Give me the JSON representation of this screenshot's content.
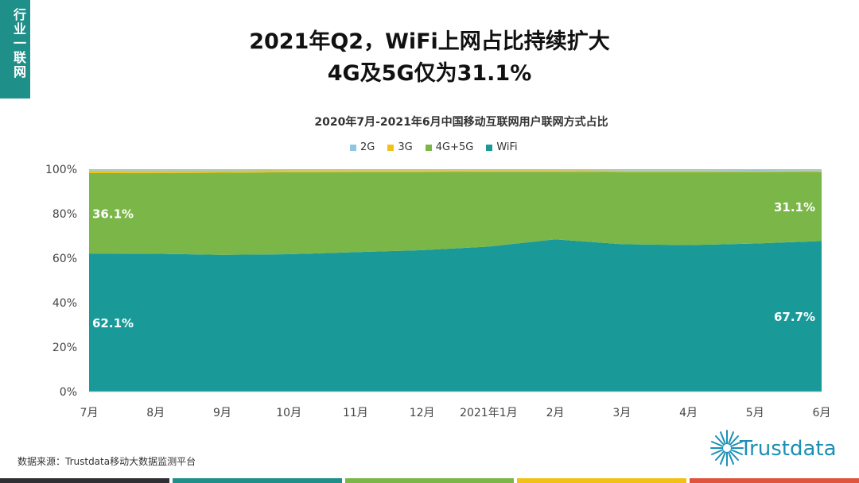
{
  "side_tab": {
    "label": "行业一联网"
  },
  "title_line1": "2021年Q2，WiFi上网占比持续扩大",
  "title_line2": "4G及5G仅为31.1%",
  "source": "数据来源：Trustdata移动大数据监测平台",
  "logo": {
    "text": "Trustdata"
  },
  "colors": {
    "2G": "#8fc7e3",
    "3G": "#f2c115",
    "4G+5G": "#7ab648",
    "WiFi": "#199a99",
    "tab": "#1f8f8a"
  },
  "bottom_bar_colors": [
    "#2d2f33",
    "#1f8f8a",
    "#7ab648",
    "#f2c115",
    "#e0533d"
  ],
  "chart_data": {
    "type": "area",
    "stacked": true,
    "title": "2020年7月-2021年6月中国移动互联网用户联网方式占比",
    "categories": [
      "7月",
      "8月",
      "9月",
      "10月",
      "11月",
      "12月",
      "2021年1月",
      "2月",
      "3月",
      "4月",
      "5月",
      "6月"
    ],
    "ylim": [
      0,
      100
    ],
    "y_ticks": [
      "0%",
      "20%",
      "40%",
      "60%",
      "80%",
      "100%"
    ],
    "legend_position": "top",
    "series": [
      {
        "name": "WiFi",
        "values": [
          62.1,
          62.0,
          61.5,
          61.8,
          62.7,
          63.6,
          65.2,
          68.5,
          66.3,
          65.9,
          66.6,
          67.7
        ]
      },
      {
        "name": "4G+5G",
        "values": [
          36.1,
          36.3,
          36.9,
          36.8,
          36.0,
          35.1,
          33.6,
          30.3,
          32.4,
          32.8,
          32.1,
          31.1
        ]
      },
      {
        "name": "3G",
        "values": [
          1.2,
          1.1,
          1.0,
          0.9,
          0.8,
          0.8,
          0.7,
          0.7,
          0.7,
          0.7,
          0.6,
          0.6
        ]
      },
      {
        "name": "2G",
        "values": [
          0.6,
          0.6,
          0.6,
          0.5,
          0.5,
          0.5,
          0.5,
          0.5,
          0.6,
          0.6,
          0.7,
          0.6
        ]
      }
    ],
    "annotations": [
      {
        "series": "WiFi",
        "index": 0,
        "text": "62.1%"
      },
      {
        "series": "4G+5G",
        "index": 0,
        "text": "36.1%"
      },
      {
        "series": "WiFi",
        "index": 11,
        "text": "67.7%"
      },
      {
        "series": "4G+5G",
        "index": 11,
        "text": "31.1%"
      }
    ]
  }
}
